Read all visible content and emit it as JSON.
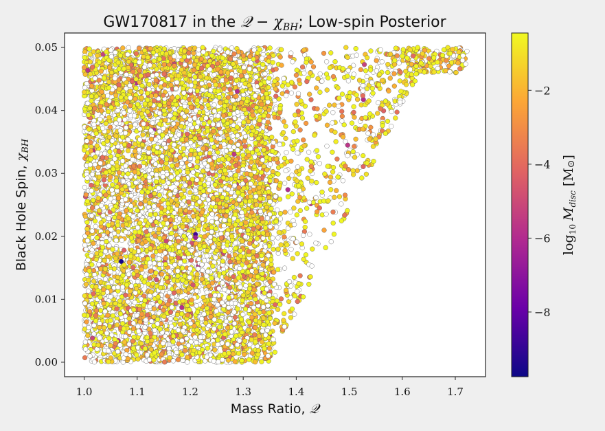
{
  "chart_data": {
    "type": "scatter",
    "title": "GW170817 in the 𝒬 − χBH; Low-spin Posterior",
    "title_parts": {
      "pre": "GW170817 in the ",
      "q": "𝒬",
      "minus": " − ",
      "chi": "χ",
      "chi_sub": "BH",
      "post": "; Low-spin Posterior"
    },
    "xlabel": "Mass Ratio, 𝒬",
    "xlabel_parts": {
      "text": "Mass Ratio, ",
      "sym": "𝒬"
    },
    "ylabel": "Black Hole Spin, χBH",
    "ylabel_parts": {
      "text": "Black Hole Spin, ",
      "sym": "χ",
      "sub": "BH"
    },
    "xlim": [
      0.963,
      1.757
    ],
    "ylim": [
      -0.0023,
      0.0523
    ],
    "xticks": [
      "1.0",
      "1.1",
      "1.2",
      "1.3",
      "1.4",
      "1.5",
      "1.6",
      "1.7"
    ],
    "xtick_values": [
      1.0,
      1.1,
      1.2,
      1.3,
      1.4,
      1.5,
      1.6,
      1.7
    ],
    "yticks": [
      "0.00",
      "0.01",
      "0.02",
      "0.03",
      "0.04",
      "0.05"
    ],
    "ytick_values": [
      0.0,
      0.01,
      0.02,
      0.03,
      0.04,
      0.05
    ],
    "grid": false,
    "colorbar": {
      "label": "log10 Mdisc [M⊙]",
      "label_parts": {
        "log": "log",
        "log_sub": "10",
        "m": "M",
        "m_sub": "disc",
        "unit_open": " [M",
        "sun": "⊙",
        "unit_close": "]"
      },
      "range": [
        -9.75,
        -0.45
      ],
      "ticks": [
        "−2",
        "−4",
        "−6",
        "−8"
      ],
      "tick_values": [
        -2,
        -4,
        -6,
        -8
      ],
      "colormap": "plasma",
      "colormap_stops": [
        "#0d0887",
        "#6a00a8",
        "#b12a90",
        "#e16462",
        "#fca636",
        "#f0f921"
      ]
    },
    "distribution": {
      "dense_region": {
        "x": [
          1.0,
          1.35
        ],
        "y": [
          0.0,
          0.05
        ]
      },
      "sparse_tail_x_max": 1.72,
      "point_count_approx": 9000,
      "no_disc_color": "#ffffff",
      "marker_edge_color": "#555555",
      "note_points": [
        {
          "x": 1.07,
          "y": 0.016,
          "log10_mdisc": -9.6
        },
        {
          "x": 1.21,
          "y": 0.0203,
          "log10_mdisc": -8.7
        },
        {
          "x": 1.21,
          "y": 0.0198,
          "log10_mdisc": -6.5
        },
        {
          "x": 1.695,
          "y": 0.0497,
          "log10_mdisc": -1.6
        },
        {
          "x": 1.722,
          "y": 0.0494,
          "log10_mdisc": null
        }
      ]
    }
  }
}
